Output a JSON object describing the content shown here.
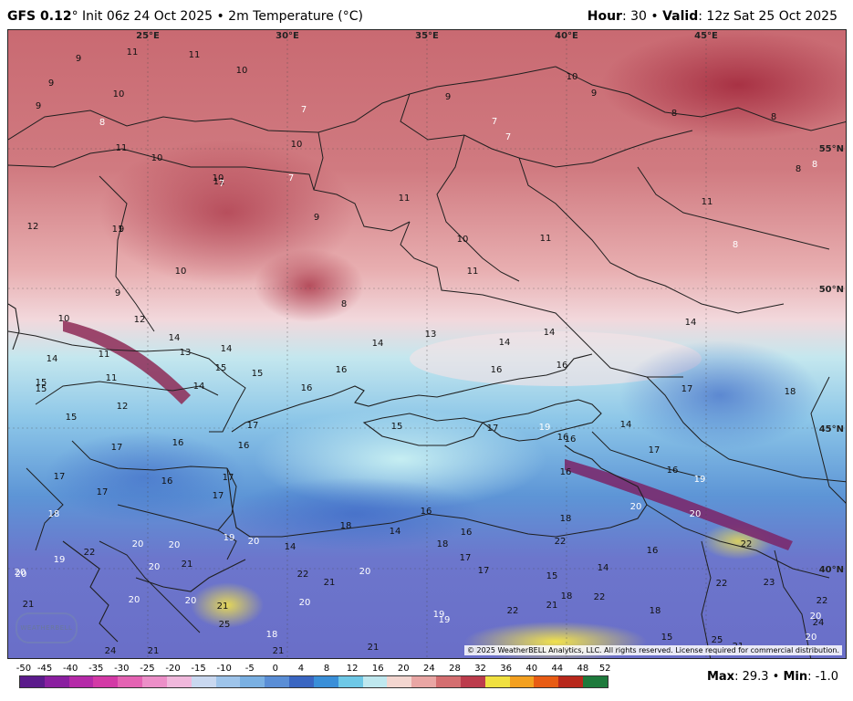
{
  "header": {
    "model": "GFS 0.12",
    "degree": "°",
    "init_text": " Init 06z 24 Oct 2025 • 2m Temperature (°C)",
    "hour_label": "Hour",
    "hour_value": ": 30 • ",
    "valid_label": "Valid",
    "valid_value": ": 12z Sat 25 Oct 2025"
  },
  "map": {
    "lon_labels": [
      "25°E",
      "30°E",
      "35°E",
      "40°E",
      "45°E"
    ],
    "lat_labels": [
      "55°N",
      "50°N",
      "45°N",
      "40°N"
    ],
    "temperature_labels": [
      {
        "t": "9",
        "c": "dark"
      },
      {
        "t": "11",
        "c": "dark"
      },
      {
        "t": "11",
        "c": "dark"
      },
      {
        "t": "10",
        "c": "dark"
      },
      {
        "t": "9",
        "c": "dark"
      },
      {
        "t": "10",
        "c": "dark"
      },
      {
        "t": "9",
        "c": "dark"
      },
      {
        "t": "8",
        "c": "light"
      },
      {
        "t": "7",
        "c": "light"
      },
      {
        "t": "9",
        "c": "dark"
      },
      {
        "t": "10",
        "c": "dark"
      },
      {
        "t": "9",
        "c": "dark"
      },
      {
        "t": "7",
        "c": "light"
      },
      {
        "t": "7",
        "c": "light"
      },
      {
        "t": "8",
        "c": "dark"
      },
      {
        "t": "8",
        "c": "dark"
      },
      {
        "t": "11",
        "c": "dark"
      },
      {
        "t": "10",
        "c": "dark"
      },
      {
        "t": "10",
        "c": "dark"
      },
      {
        "t": "11",
        "c": "dark"
      },
      {
        "t": "12",
        "c": "dark"
      },
      {
        "t": "11",
        "c": "dark"
      },
      {
        "t": "10",
        "c": "dark"
      },
      {
        "t": "7",
        "c": "light"
      },
      {
        "t": "7",
        "c": "light"
      },
      {
        "t": "9",
        "c": "dark"
      },
      {
        "t": "11",
        "c": "dark"
      },
      {
        "t": "10",
        "c": "dark"
      },
      {
        "t": "10",
        "c": "dark"
      },
      {
        "t": "11",
        "c": "dark"
      },
      {
        "t": "11",
        "c": "dark"
      },
      {
        "t": "9",
        "c": "dark"
      },
      {
        "t": "10",
        "c": "dark"
      },
      {
        "t": "9",
        "c": "dark"
      },
      {
        "t": "8",
        "c": "dark"
      },
      {
        "t": "8",
        "c": "light"
      },
      {
        "t": "8",
        "c": "light"
      },
      {
        "t": "8",
        "c": "dark"
      },
      {
        "t": "11",
        "c": "dark"
      },
      {
        "t": "14",
        "c": "dark"
      },
      {
        "t": "12",
        "c": "dark"
      },
      {
        "t": "14",
        "c": "dark"
      },
      {
        "t": "13",
        "c": "dark"
      },
      {
        "t": "14",
        "c": "dark"
      },
      {
        "t": "11",
        "c": "dark"
      },
      {
        "t": "14",
        "c": "dark"
      },
      {
        "t": "15",
        "c": "dark"
      },
      {
        "t": "15",
        "c": "dark"
      },
      {
        "t": "11",
        "c": "dark"
      },
      {
        "t": "14",
        "c": "dark"
      },
      {
        "t": "15",
        "c": "dark"
      },
      {
        "t": "14",
        "c": "dark"
      },
      {
        "t": "13",
        "c": "dark"
      },
      {
        "t": "14",
        "c": "dark"
      },
      {
        "t": "14",
        "c": "dark"
      },
      {
        "t": "16",
        "c": "dark"
      },
      {
        "t": "16",
        "c": "dark"
      },
      {
        "t": "16",
        "c": "dark"
      },
      {
        "t": "16",
        "c": "dark"
      },
      {
        "t": "12",
        "c": "dark"
      },
      {
        "t": "15",
        "c": "dark"
      },
      {
        "t": "15",
        "c": "dark"
      },
      {
        "t": "17",
        "c": "dark"
      },
      {
        "t": "16",
        "c": "dark"
      },
      {
        "t": "17",
        "c": "dark"
      },
      {
        "t": "14",
        "c": "dark"
      },
      {
        "t": "17",
        "c": "dark"
      },
      {
        "t": "18",
        "c": "dark"
      },
      {
        "t": "19",
        "c": "light"
      },
      {
        "t": "16",
        "c": "dark"
      },
      {
        "t": "17",
        "c": "dark"
      },
      {
        "t": "16",
        "c": "dark"
      },
      {
        "t": "16",
        "c": "dark"
      },
      {
        "t": "16",
        "c": "dark"
      },
      {
        "t": "17",
        "c": "dark"
      },
      {
        "t": "17",
        "c": "dark"
      },
      {
        "t": "17",
        "c": "dark"
      },
      {
        "t": "15",
        "c": "dark"
      },
      {
        "t": "18",
        "c": "light"
      },
      {
        "t": "17",
        "c": "dark"
      },
      {
        "t": "17",
        "c": "dark"
      },
      {
        "t": "19",
        "c": "light"
      },
      {
        "t": "16",
        "c": "dark"
      },
      {
        "t": "16",
        "c": "dark"
      },
      {
        "t": "20",
        "c": "light"
      },
      {
        "t": "18",
        "c": "dark"
      },
      {
        "t": "20",
        "c": "light"
      },
      {
        "t": "19",
        "c": "light"
      },
      {
        "t": "20",
        "c": "light"
      },
      {
        "t": "20",
        "c": "light"
      },
      {
        "t": "14",
        "c": "dark"
      },
      {
        "t": "18",
        "c": "dark"
      },
      {
        "t": "14",
        "c": "dark"
      },
      {
        "t": "16",
        "c": "dark"
      },
      {
        "t": "16",
        "c": "dark"
      },
      {
        "t": "22",
        "c": "dark"
      },
      {
        "t": "20",
        "c": "light"
      },
      {
        "t": "18",
        "c": "dark"
      },
      {
        "t": "20",
        "c": "light"
      },
      {
        "t": "22",
        "c": "dark"
      },
      {
        "t": "22",
        "c": "dark"
      },
      {
        "t": "19",
        "c": "light"
      },
      {
        "t": "20",
        "c": "light"
      },
      {
        "t": "20",
        "c": "light"
      },
      {
        "t": "21",
        "c": "dark"
      },
      {
        "t": "22",
        "c": "dark"
      },
      {
        "t": "21",
        "c": "dark"
      },
      {
        "t": "20",
        "c": "light"
      },
      {
        "t": "17",
        "c": "dark"
      },
      {
        "t": "17",
        "c": "dark"
      },
      {
        "t": "15",
        "c": "dark"
      },
      {
        "t": "14",
        "c": "dark"
      },
      {
        "t": "16",
        "c": "dark"
      },
      {
        "t": "18",
        "c": "dark"
      },
      {
        "t": "22",
        "c": "dark"
      },
      {
        "t": "18",
        "c": "dark"
      },
      {
        "t": "22",
        "c": "dark"
      },
      {
        "t": "23",
        "c": "dark"
      },
      {
        "t": "20",
        "c": "light"
      },
      {
        "t": "21",
        "c": "dark"
      },
      {
        "t": "25",
        "c": "dark"
      },
      {
        "t": "18",
        "c": "light"
      },
      {
        "t": "20",
        "c": "light"
      },
      {
        "t": "21",
        "c": "dark"
      },
      {
        "t": "19",
        "c": "light"
      },
      {
        "t": "22",
        "c": "dark"
      },
      {
        "t": "21",
        "c": "dark"
      },
      {
        "t": "19",
        "c": "light"
      },
      {
        "t": "15",
        "c": "dark"
      },
      {
        "t": "24",
        "c": "dark"
      },
      {
        "t": "24",
        "c": "dark"
      },
      {
        "t": "21",
        "c": "dark"
      },
      {
        "t": "21",
        "c": "dark"
      },
      {
        "t": "24",
        "c": "dark"
      },
      {
        "t": "24",
        "c": "dark"
      },
      {
        "t": "24",
        "c": "dark"
      },
      {
        "t": "25",
        "c": "dark"
      },
      {
        "t": "24",
        "c": "dark"
      },
      {
        "t": "22",
        "c": "dark"
      },
      {
        "t": "20",
        "c": "light"
      },
      {
        "t": "21",
        "c": "dark"
      },
      {
        "t": "20",
        "c": "light"
      },
      {
        "t": "20",
        "c": "light"
      },
      {
        "t": "24",
        "c": "dark"
      },
      {
        "t": "21",
        "c": "dark"
      }
    ],
    "copyright": "© 2025 WeatherBELL Analytics, LLC. All rights reserved. License required for commercial distribution.",
    "logo_text": "WEATHERBELL"
  },
  "legend": {
    "ticks": [
      "-50",
      "-45",
      "-40",
      "-35",
      "-30",
      "-25",
      "-20",
      "-15",
      "-10",
      "-5",
      "0",
      "4",
      "8",
      "12",
      "16",
      "20",
      "24",
      "28",
      "32",
      "36",
      "40",
      "44",
      "48",
      "52"
    ],
    "colors": [
      "#5b1b8c",
      "#8a1fa0",
      "#b52aa8",
      "#d33aa6",
      "#e463b3",
      "#ec8fc8",
      "#f0b8dc",
      "#c9d8f0",
      "#9ec4ea",
      "#7ab0e2",
      "#5a8ed6",
      "#3a66c2",
      "#3a8fd8",
      "#6ec8e6",
      "#bfe8ef",
      "#f3d6d0",
      "#e9a6a4",
      "#d46e70",
      "#bc3c4c",
      "#f0e040",
      "#f3a020",
      "#e85c14",
      "#b8281c",
      "#1e7a3c"
    ]
  },
  "footer": {
    "max_label": "Max",
    "max_value": ": 29.3 • ",
    "min_label": "Min",
    "min_value": ": -1.0"
  }
}
